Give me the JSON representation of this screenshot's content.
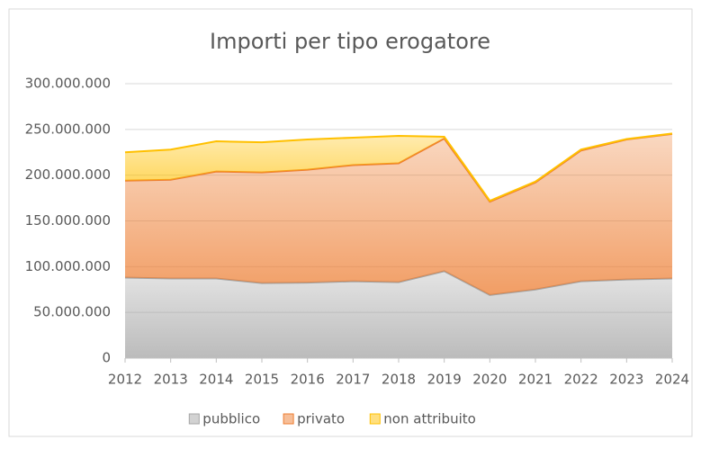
{
  "chart_data": {
    "type": "area",
    "stacked": true,
    "title": "Importi per tipo erogatore",
    "categories": [
      "2012",
      "2013",
      "2014",
      "2015",
      "2016",
      "2017",
      "2018",
      "2019",
      "2020",
      "2021",
      "2022",
      "2023",
      "2024"
    ],
    "series": [
      {
        "name": "pubblico",
        "color": "#a5a5a5",
        "values": [
          88000000,
          87000000,
          87000000,
          82000000,
          82500000,
          84000000,
          83000000,
          95000000,
          69000000,
          75000000,
          84000000,
          86000000,
          87000000
        ]
      },
      {
        "name": "privato",
        "color": "#ed7d31",
        "values": [
          106000000,
          108000000,
          117000000,
          121000000,
          123500000,
          127000000,
          130000000,
          145000000,
          102000000,
          117000000,
          143000000,
          153000000,
          158000000
        ]
      },
      {
        "name": "non attribuito",
        "color": "#ffc000",
        "values": [
          31000000,
          33000000,
          33000000,
          33000000,
          33000000,
          30000000,
          30000000,
          2000000,
          1000000,
          1000000,
          1000000,
          500000,
          500000
        ]
      }
    ],
    "ylim": [
      0,
      300000000
    ],
    "yticks": [
      0,
      {
        "value": 50000000,
        "label": "50.000.000"
      },
      {
        "value": 100000000,
        "label": "100.000.000"
      },
      {
        "value": 150000000,
        "label": "150.000.000"
      },
      {
        "value": 200000000,
        "label": "200.000.000"
      },
      {
        "value": 250000000,
        "label": "250.000.000"
      },
      {
        "value": 300000000,
        "label": "300.000.000"
      }
    ],
    "grid": true,
    "legend": "bottom"
  }
}
